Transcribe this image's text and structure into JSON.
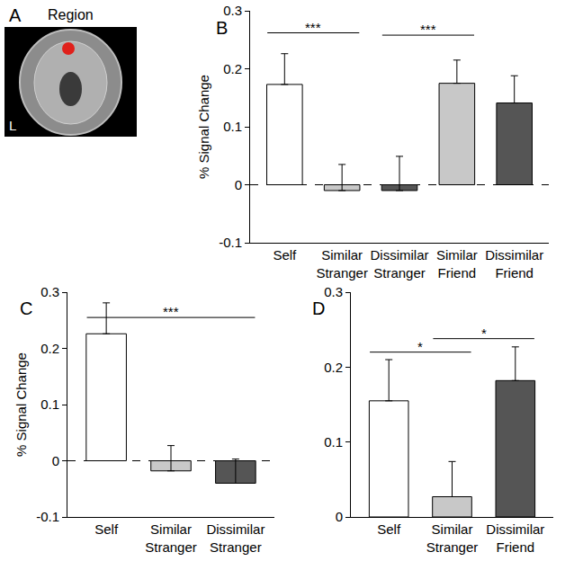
{
  "panel_a": {
    "label": "A",
    "title": "Region",
    "side_label": "L"
  },
  "chart_data": [
    {
      "type": "bar",
      "panel_label": "B",
      "y_label": "% Signal Change",
      "categories": [
        "Self",
        "Similar Stranger",
        "Dissimilar Stranger",
        "Similar Friend",
        "Dissimilar Friend"
      ],
      "values": [
        0.173,
        -0.01,
        -0.01,
        0.175,
        0.141
      ],
      "errors": [
        0.053,
        0.045,
        0.059,
        0.04,
        0.047
      ],
      "colors": [
        "#ffffff",
        "#c8c8c8",
        "#555555",
        "#c8c8c8",
        "#555555"
      ],
      "ylim": [
        -0.1,
        0.3
      ],
      "yticks": [
        -0.1,
        0,
        0.1,
        0.2,
        0.3
      ],
      "significance": [
        {
          "from": "Self",
          "to": "Similar Stranger",
          "y": 0.262,
          "text": "***"
        },
        {
          "from": "Dissimilar Stranger",
          "to": "Similar Friend",
          "y": 0.258,
          "text": "***"
        }
      ]
    },
    {
      "type": "bar",
      "panel_label": "C",
      "y_label": "% Signal Change",
      "categories": [
        "Self",
        "Similar Stranger",
        "Dissimilar Stranger"
      ],
      "values": [
        0.226,
        -0.018,
        -0.04
      ],
      "errors": [
        0.055,
        0.045,
        0.043
      ],
      "colors": [
        "#ffffff",
        "#c8c8c8",
        "#555555"
      ],
      "ylim": [
        -0.1,
        0.3
      ],
      "yticks": [
        -0.1,
        0,
        0.1,
        0.2,
        0.3
      ],
      "significance": [
        {
          "from": "Self",
          "to": "Dissimilar Stranger",
          "y": 0.255,
          "text": "***"
        }
      ]
    },
    {
      "type": "bar",
      "panel_label": "D",
      "categories": [
        "Self",
        "Similar Stranger",
        "Dissimilar Friend"
      ],
      "values": [
        0.155,
        0.027,
        0.182
      ],
      "errors": [
        0.055,
        0.047,
        0.045
      ],
      "colors": [
        "#ffffff",
        "#c8c8c8",
        "#555555"
      ],
      "ylim": [
        0,
        0.3
      ],
      "yticks": [
        0,
        0.1,
        0.2,
        0.3
      ],
      "significance": [
        {
          "from": "Self",
          "to": "Similar Stranger",
          "y": 0.22,
          "text": "*"
        },
        {
          "from": "Similar Stranger",
          "to": "Dissimilar Friend",
          "y": 0.238,
          "text": "*"
        }
      ]
    }
  ]
}
